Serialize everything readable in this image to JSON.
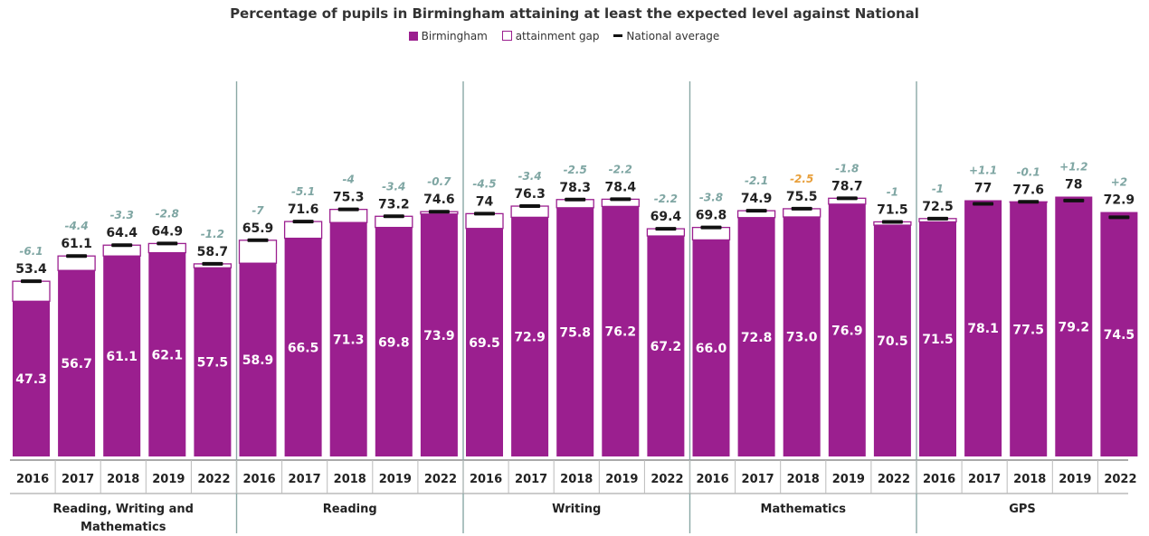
{
  "chart_data": {
    "type": "bar",
    "title": "Percentage of pupils in Birmingham attaining at least the expected level against National",
    "legend": [
      {
        "key": "birmingham",
        "label": "Birmingham",
        "color": "#9b1f8f"
      },
      {
        "key": "gap",
        "label": "attainment gap",
        "color": "#ffffff"
      },
      {
        "key": "national",
        "label": "National average",
        "color": "#111111"
      }
    ],
    "ylim": [
      0,
      100
    ],
    "groups": [
      {
        "label": "Reading, Writing and Mathematics",
        "bars": [
          {
            "year": "2016",
            "birmingham": "47.3",
            "national": "53.4",
            "diff": "-6.1"
          },
          {
            "year": "2017",
            "birmingham": "56.7",
            "national": "61.1",
            "diff": "-4.4"
          },
          {
            "year": "2018",
            "birmingham": "61.1",
            "national": "64.4",
            "diff": "-3.3"
          },
          {
            "year": "2019",
            "birmingham": "62.1",
            "national": "64.9",
            "diff": "-2.8"
          },
          {
            "year": "2022",
            "birmingham": "57.5",
            "national": "58.7",
            "diff": "-1.2"
          }
        ]
      },
      {
        "label": "Reading",
        "bars": [
          {
            "year": "2016",
            "birmingham": "58.9",
            "national": "65.9",
            "diff": "-7"
          },
          {
            "year": "2017",
            "birmingham": "66.5",
            "national": "71.6",
            "diff": "-5.1"
          },
          {
            "year": "2018",
            "birmingham": "71.3",
            "national": "75.3",
            "diff": "-4"
          },
          {
            "year": "2019",
            "birmingham": "69.8",
            "national": "73.2",
            "diff": "-3.4"
          },
          {
            "year": "2022",
            "birmingham": "73.9",
            "national": "74.6",
            "diff": "-0.7"
          }
        ]
      },
      {
        "label": "Writing",
        "bars": [
          {
            "year": "2016",
            "birmingham": "69.5",
            "national": "74",
            "diff": "-4.5"
          },
          {
            "year": "2017",
            "birmingham": "72.9",
            "national": "76.3",
            "diff": "-3.4"
          },
          {
            "year": "2018",
            "birmingham": "75.8",
            "national": "78.3",
            "diff": "-2.5"
          },
          {
            "year": "2019",
            "birmingham": "76.2",
            "national": "78.4",
            "diff": "-2.2"
          },
          {
            "year": "2022",
            "birmingham": "67.2",
            "national": "69.4",
            "diff": "-2.2"
          }
        ]
      },
      {
        "label": "Mathematics",
        "bars": [
          {
            "year": "2016",
            "birmingham": "66.0",
            "national": "69.8",
            "diff": "-3.8"
          },
          {
            "year": "2017",
            "birmingham": "72.8",
            "national": "74.9",
            "diff": "-2.1"
          },
          {
            "year": "2018",
            "birmingham": "73.0",
            "national": "75.5",
            "diff": "-2.5"
          },
          {
            "year": "2019",
            "birmingham": "76.9",
            "national": "78.7",
            "diff": "-1.8"
          },
          {
            "year": "2022",
            "birmingham": "70.5",
            "national": "71.5",
            "diff": "-1"
          }
        ]
      },
      {
        "label": "GPS",
        "bars": [
          {
            "year": "2016",
            "birmingham": "71.5",
            "national": "72.5",
            "diff": "-1"
          },
          {
            "year": "2017",
            "birmingham": "78.1",
            "national": "77",
            "diff": "+1.1"
          },
          {
            "year": "2018",
            "birmingham": "77.5",
            "national": "77.6",
            "diff": "-0.1"
          },
          {
            "year": "2019",
            "birmingham": "79.2",
            "national": "78",
            "diff": "+1.2"
          },
          {
            "year": "2022",
            "birmingham": "74.5",
            "national": "72.9",
            "diff": "+2"
          }
        ]
      }
    ],
    "colors": {
      "bar": "#9b1f8f",
      "bar_label": "#ffffff",
      "national_label": "#222222",
      "diff_label": "#7fa6a3",
      "diff_label_highlight": "#e8a03c",
      "separator": "#8aa8a5"
    },
    "highlight_diff": {
      "group": 3,
      "bar": 2
    }
  }
}
